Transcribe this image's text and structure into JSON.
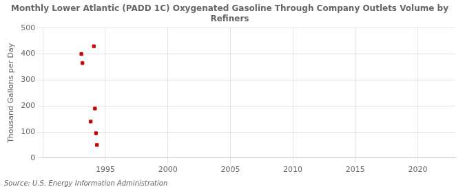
{
  "chart_data": {
    "type": "scatter",
    "title": "Monthly Lower Atlantic (PADD 1C) Oxygenated Gasoline Through Company Outlets Volume by\nRefiners",
    "ylabel": "Thousand Gallons per Day",
    "annotation": "Source: U.S. Energy Information Administration",
    "x": [
      1993.08,
      1993.17,
      1993.83,
      1994.08,
      1994.17,
      1994.25,
      1994.33
    ],
    "values": [
      400,
      365,
      140,
      430,
      190,
      95,
      50
    ],
    "color": "#cc0000",
    "marker": "square",
    "xlim": [
      1990,
      2023
    ],
    "ylim": [
      0,
      500
    ],
    "xticks": [
      1995,
      2000,
      2005,
      2010,
      2015,
      2020
    ],
    "yticks": [
      0,
      100,
      200,
      300,
      400,
      500
    ],
    "grid": true
  }
}
